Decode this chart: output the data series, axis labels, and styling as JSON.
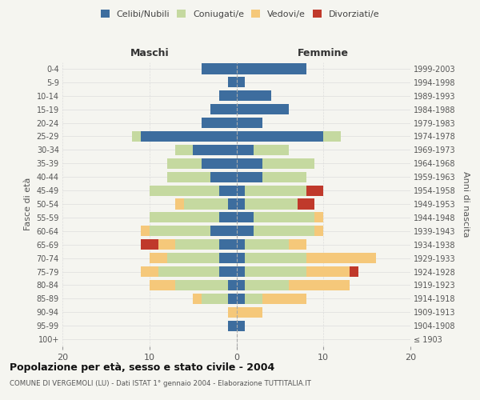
{
  "age_groups": [
    "100+",
    "95-99",
    "90-94",
    "85-89",
    "80-84",
    "75-79",
    "70-74",
    "65-69",
    "60-64",
    "55-59",
    "50-54",
    "45-49",
    "40-44",
    "35-39",
    "30-34",
    "25-29",
    "20-24",
    "15-19",
    "10-14",
    "5-9",
    "0-4"
  ],
  "birth_years": [
    "≤ 1903",
    "1904-1908",
    "1909-1913",
    "1914-1918",
    "1919-1923",
    "1924-1928",
    "1929-1933",
    "1934-1938",
    "1939-1943",
    "1944-1948",
    "1949-1953",
    "1954-1958",
    "1959-1963",
    "1964-1968",
    "1969-1973",
    "1974-1978",
    "1979-1983",
    "1984-1988",
    "1989-1993",
    "1994-1998",
    "1999-2003"
  ],
  "maschi": {
    "celibi": [
      0,
      1,
      0,
      1,
      1,
      2,
      2,
      2,
      3,
      2,
      1,
      2,
      3,
      4,
      5,
      11,
      4,
      3,
      2,
      1,
      4
    ],
    "coniugati": [
      0,
      0,
      0,
      3,
      6,
      7,
      6,
      5,
      7,
      8,
      5,
      8,
      5,
      4,
      2,
      1,
      0,
      0,
      0,
      0,
      0
    ],
    "vedovi": [
      0,
      0,
      1,
      1,
      3,
      2,
      2,
      2,
      1,
      0,
      1,
      0,
      0,
      0,
      0,
      0,
      0,
      0,
      0,
      0,
      0
    ],
    "divorziati": [
      0,
      0,
      0,
      0,
      0,
      0,
      0,
      2,
      0,
      0,
      0,
      0,
      0,
      0,
      0,
      0,
      0,
      0,
      0,
      0,
      0
    ]
  },
  "femmine": {
    "nubili": [
      0,
      1,
      0,
      1,
      1,
      1,
      1,
      1,
      2,
      2,
      1,
      1,
      3,
      3,
      2,
      10,
      3,
      6,
      4,
      1,
      8
    ],
    "coniugate": [
      0,
      0,
      0,
      2,
      5,
      7,
      7,
      5,
      7,
      7,
      6,
      7,
      5,
      6,
      4,
      2,
      0,
      0,
      0,
      0,
      0
    ],
    "vedove": [
      0,
      0,
      3,
      5,
      7,
      5,
      8,
      2,
      1,
      1,
      0,
      0,
      0,
      0,
      0,
      0,
      0,
      0,
      0,
      0,
      0
    ],
    "divorziate": [
      0,
      0,
      0,
      0,
      0,
      1,
      0,
      0,
      0,
      0,
      2,
      2,
      0,
      0,
      0,
      0,
      0,
      0,
      0,
      0,
      0
    ]
  },
  "colors": {
    "celibi": "#3d6d9e",
    "coniugati": "#c5d9a0",
    "vedovi": "#f5c87a",
    "divorziati": "#c0392b"
  },
  "xlim": 20,
  "title": "Popolazione per età, sesso e stato civile - 2004",
  "subtitle": "COMUNE DI VERGEMOLI (LU) - Dati ISTAT 1° gennaio 2004 - Elaborazione TUTTITALIA.IT",
  "ylabel_left": "Fasce di età",
  "ylabel_right": "Anni di nascita",
  "xlabel_maschi": "Maschi",
  "xlabel_femmine": "Femmine",
  "bg_color": "#f5f5f0"
}
